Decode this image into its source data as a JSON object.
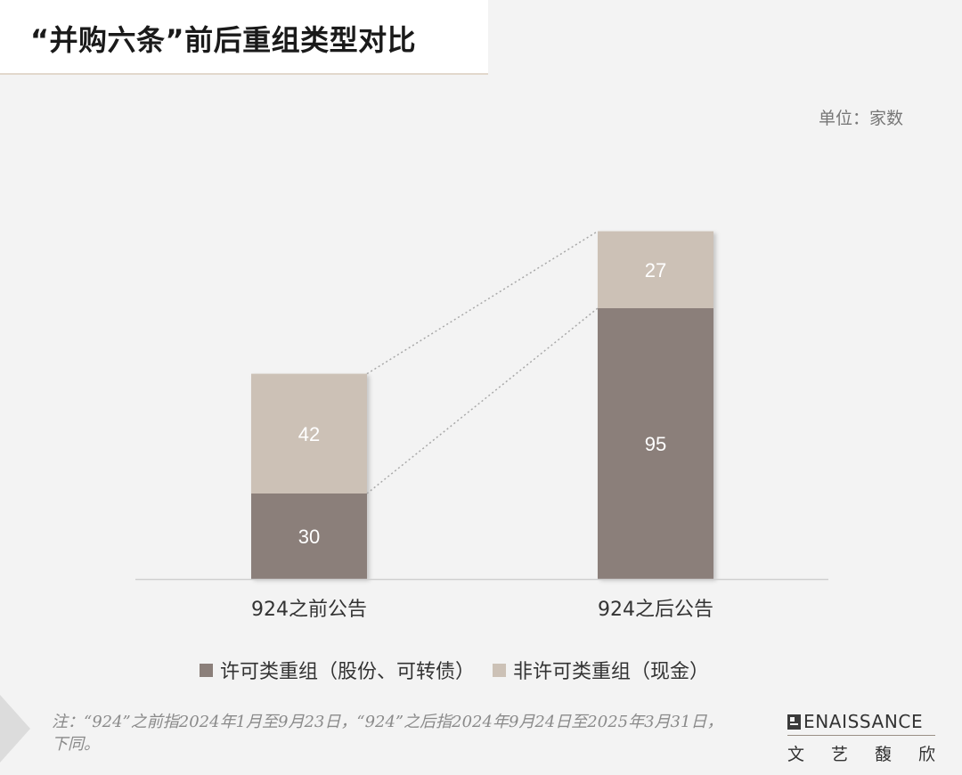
{
  "title": "“并购六条”前后重组类型对比",
  "unit_label": "单位：家数",
  "colors": {
    "permitted": "#8b7f7a",
    "non_permitted": "#ccc1b6",
    "axis": "#d0d0d0",
    "connector": "#a8a8a8",
    "background": "#f3f3f3"
  },
  "chart_data": {
    "type": "bar",
    "stacked": true,
    "categories": [
      "924之前公告",
      "924之后公告"
    ],
    "series": [
      {
        "name": "许可类重组（股份、可转债）",
        "values": [
          30,
          95
        ],
        "color": "#8b7f7a"
      },
      {
        "name": "非许可类重组（现金）",
        "values": [
          42,
          27
        ],
        "color": "#ccc1b6"
      }
    ],
    "ylim": [
      0,
      125
    ],
    "grid": false,
    "legend": "bottom",
    "data_labels": true
  },
  "legend": {
    "item_1": "许可类重组（股份、可转债）",
    "item_2": "非许可类重组（现金）"
  },
  "note": "注：“924”之前指2024年1月至9月23日，“924”之后指2024年9月24日至2025年3月31日，下同。",
  "logo": {
    "text": "ENAISSANCE",
    "cn": [
      "文",
      "艺",
      "馥",
      "欣"
    ]
  }
}
